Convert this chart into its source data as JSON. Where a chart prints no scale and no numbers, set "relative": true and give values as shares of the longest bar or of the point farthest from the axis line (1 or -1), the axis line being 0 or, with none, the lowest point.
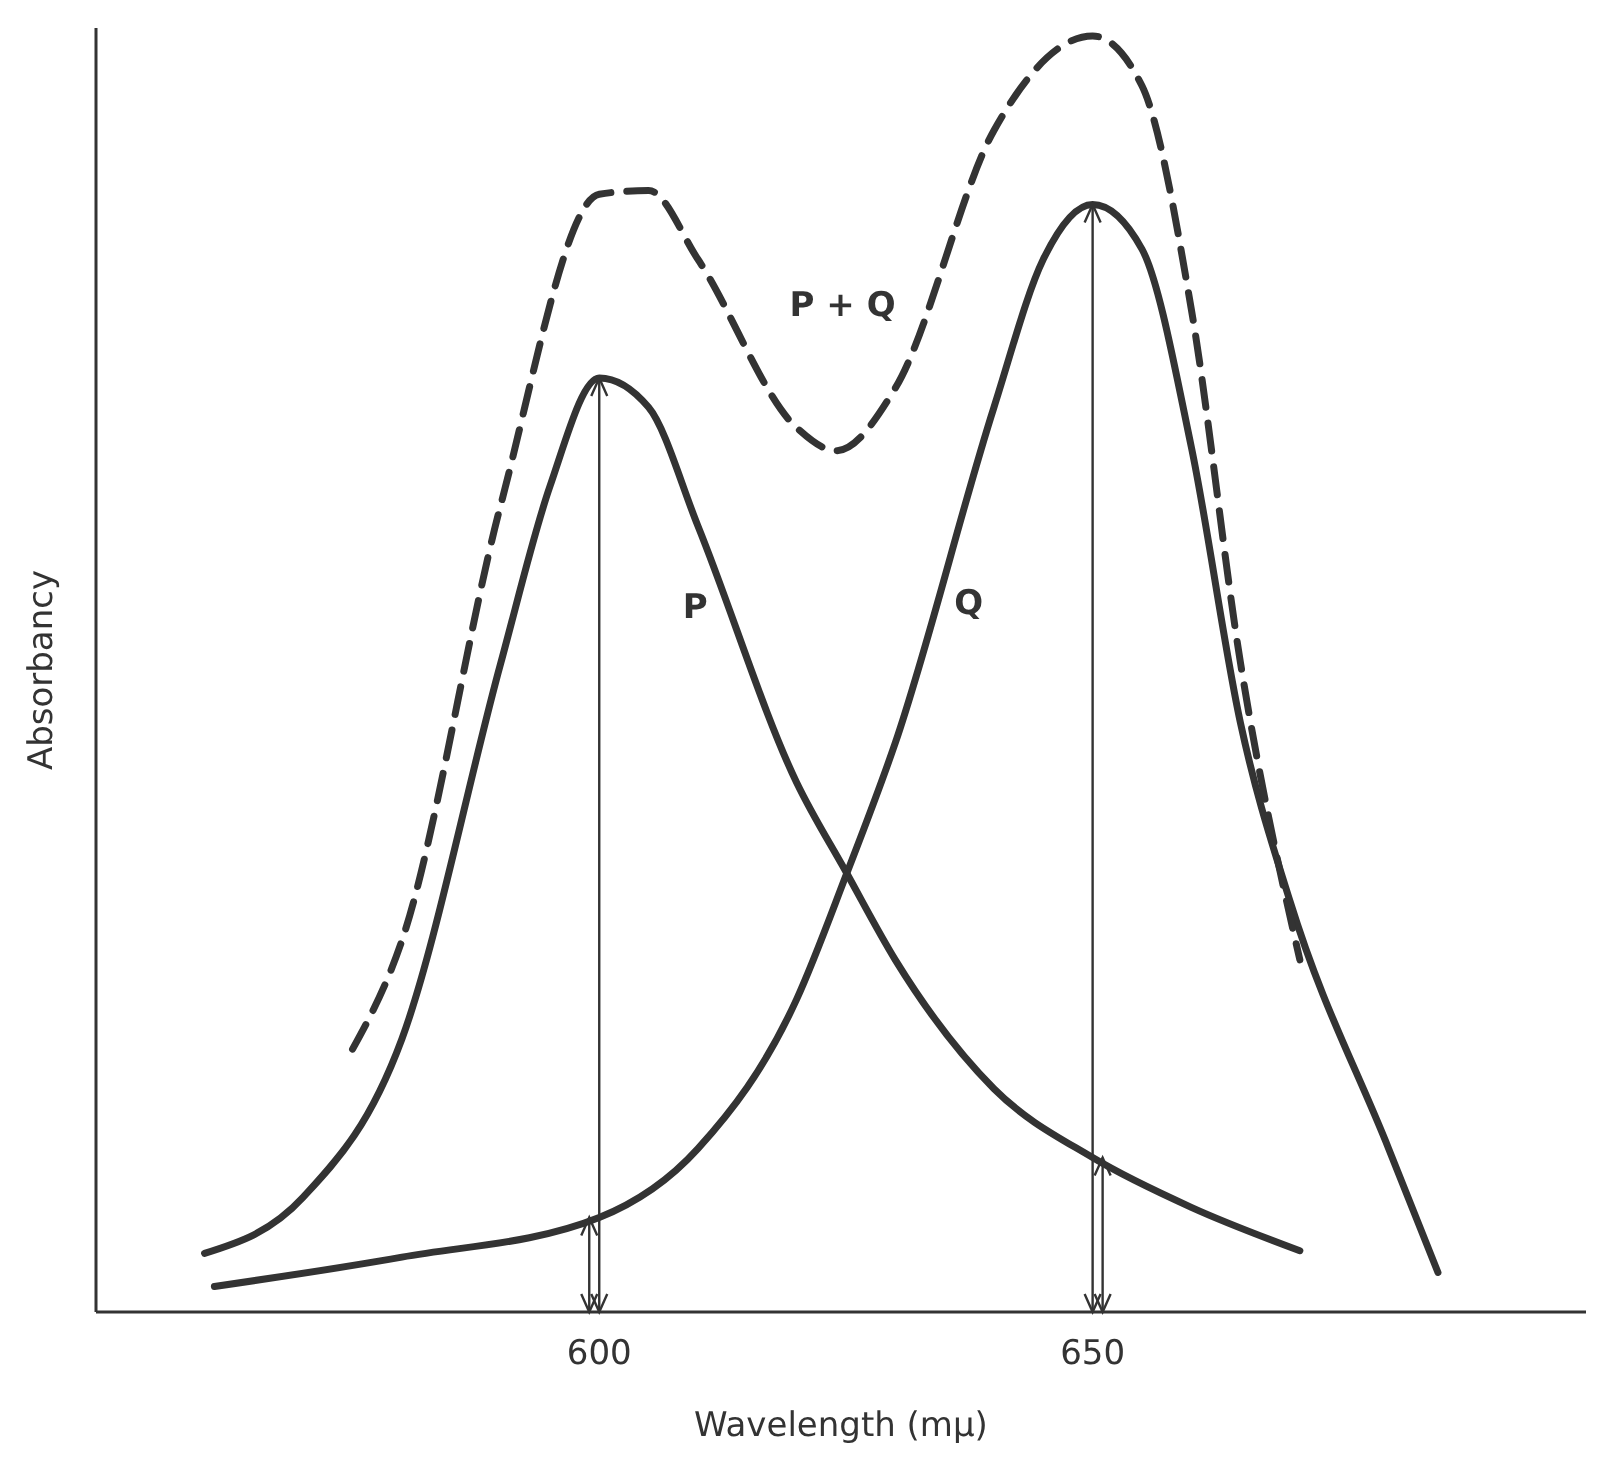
{
  "chart_data": {
    "type": "line",
    "relative": true,
    "xlabel": "Wavelength (mμ)",
    "ylabel": "Absorbancy",
    "xlim": [
      549,
      700
    ],
    "xticks": [
      600,
      650
    ],
    "marker": "none",
    "series": [
      {
        "name": "P",
        "color": "#333333",
        "line_style": "solid",
        "x": [
          560,
          570,
          580,
          590,
          595,
          600,
          605,
          610,
          620,
          625,
          630,
          640,
          650,
          660,
          671
        ],
        "values": [
          0.046,
          0.09,
          0.214,
          0.508,
          0.647,
          0.732,
          0.709,
          0.616,
          0.415,
          0.345,
          0.276,
          0.175,
          0.121,
          0.082,
          0.048
        ]
      },
      {
        "name": "Q",
        "color": "#333333",
        "line_style": "solid",
        "x": [
          561,
          580,
          600,
          610,
          620,
          625,
          630,
          640,
          645,
          650,
          655,
          660,
          665,
          670,
          680,
          685
        ],
        "values": [
          0.02,
          0.043,
          0.074,
          0.128,
          0.245,
          0.342,
          0.446,
          0.709,
          0.825,
          0.868,
          0.833,
          0.678,
          0.461,
          0.322,
          0.128,
          0.031
        ]
      },
      {
        "name": "P + Q",
        "color": "#333333",
        "line_style": "dashed",
        "x": [
          575,
          580,
          590,
          600,
          605,
          610,
          620,
          624,
          630,
          640,
          650,
          655,
          660,
          665,
          671
        ],
        "values": [
          0.206,
          0.291,
          0.632,
          0.876,
          0.879,
          0.825,
          0.693,
          0.675,
          0.724,
          0.926,
          1,
          0.961,
          0.786,
          0.508,
          0.276
        ]
      }
    ]
  }
}
